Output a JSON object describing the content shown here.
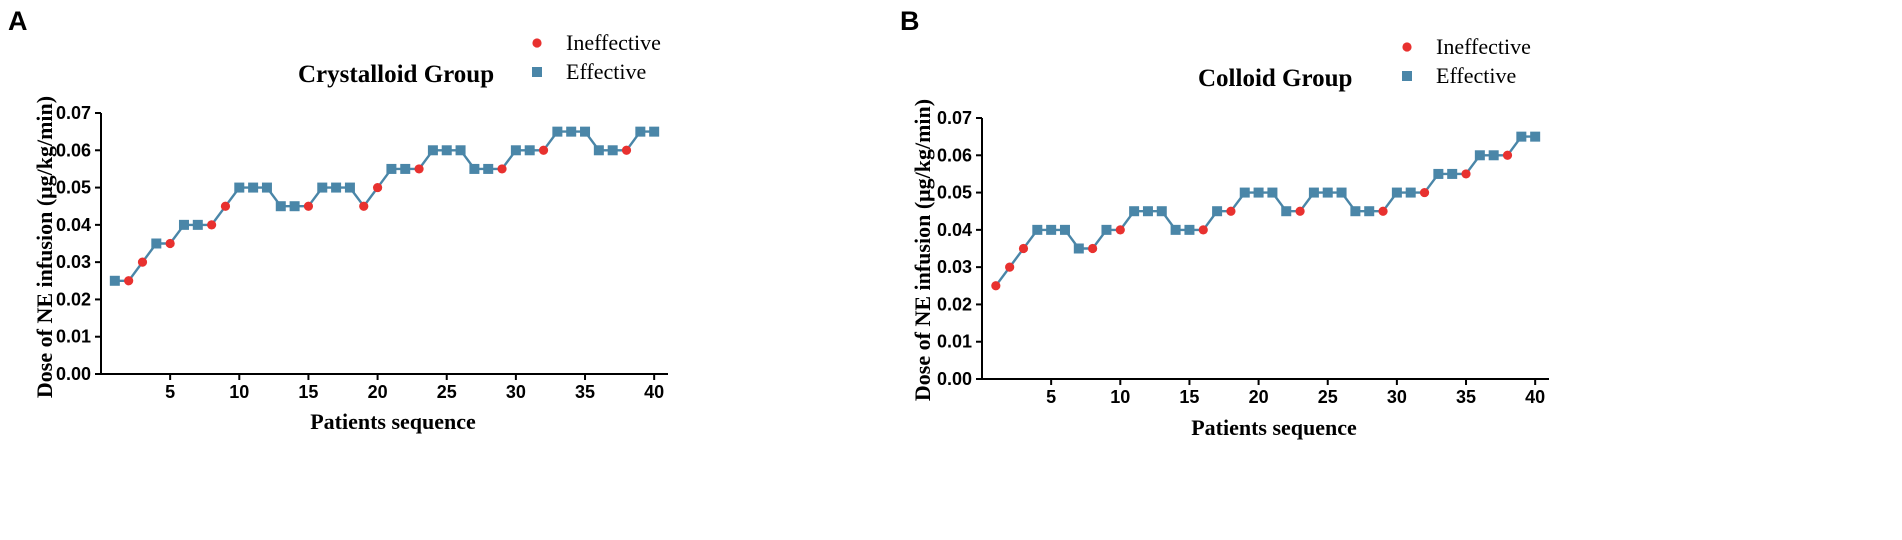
{
  "colors": {
    "ineffective": "#e8312f",
    "effective": "#4a86a8",
    "line": "#4a86a8"
  },
  "chart_data": [
    {
      "panel": "A",
      "type": "line",
      "title": "Crystalloid Group",
      "xlabel": "Patients sequence",
      "ylabel": "Dose of NE infusion (μg/kg/min)",
      "xlim": [
        0,
        41
      ],
      "ylim": [
        0,
        0.07
      ],
      "xticks": [
        5,
        10,
        15,
        20,
        25,
        30,
        35,
        40
      ],
      "yticks": [
        "0.00",
        "0.01",
        "0.02",
        "0.03",
        "0.04",
        "0.05",
        "0.06",
        "0.07"
      ],
      "legend": [
        {
          "label": "Ineffective",
          "marker": "circle"
        },
        {
          "label": "Effective",
          "marker": "square"
        }
      ],
      "x": [
        1,
        2,
        3,
        4,
        5,
        6,
        7,
        8,
        9,
        10,
        11,
        12,
        13,
        14,
        15,
        16,
        17,
        18,
        19,
        20,
        21,
        22,
        23,
        24,
        25,
        26,
        27,
        28,
        29,
        30,
        31,
        32,
        33,
        34,
        35,
        36,
        37,
        38,
        39,
        40
      ],
      "values": [
        0.025,
        0.025,
        0.03,
        0.035,
        0.035,
        0.04,
        0.04,
        0.04,
        0.045,
        0.05,
        0.05,
        0.05,
        0.045,
        0.045,
        0.045,
        0.05,
        0.05,
        0.05,
        0.045,
        0.05,
        0.055,
        0.055,
        0.055,
        0.06,
        0.06,
        0.06,
        0.055,
        0.055,
        0.055,
        0.06,
        0.06,
        0.06,
        0.065,
        0.065,
        0.065,
        0.06,
        0.06,
        0.06,
        0.065,
        0.065
      ],
      "outcomes": [
        "E",
        "I",
        "I",
        "E",
        "I",
        "E",
        "E",
        "I",
        "I",
        "E",
        "E",
        "E",
        "E",
        "E",
        "I",
        "E",
        "E",
        "E",
        "I",
        "I",
        "E",
        "E",
        "I",
        "E",
        "E",
        "E",
        "E",
        "E",
        "I",
        "E",
        "E",
        "I",
        "E",
        "E",
        "E",
        "E",
        "E",
        "I",
        "E",
        "E"
      ]
    },
    {
      "panel": "B",
      "type": "line",
      "title": "Colloid Group",
      "xlabel": "Patients sequence",
      "ylabel": "Dose of NE infusion (μg/kg/min)",
      "xlim": [
        0,
        41
      ],
      "ylim": [
        0,
        0.07
      ],
      "xticks": [
        5,
        10,
        15,
        20,
        25,
        30,
        35,
        40
      ],
      "yticks": [
        "0.00",
        "0.01",
        "0.02",
        "0.03",
        "0.04",
        "0.05",
        "0.06",
        "0.07"
      ],
      "legend": [
        {
          "label": "Ineffective",
          "marker": "circle"
        },
        {
          "label": "Effective",
          "marker": "square"
        }
      ],
      "x": [
        1,
        2,
        3,
        4,
        5,
        6,
        7,
        8,
        9,
        10,
        11,
        12,
        13,
        14,
        15,
        16,
        17,
        18,
        19,
        20,
        21,
        22,
        23,
        24,
        25,
        26,
        27,
        28,
        29,
        30,
        31,
        32,
        33,
        34,
        35,
        36,
        37,
        38,
        39,
        40
      ],
      "values": [
        0.025,
        0.03,
        0.035,
        0.04,
        0.04,
        0.04,
        0.035,
        0.035,
        0.04,
        0.04,
        0.045,
        0.045,
        0.045,
        0.04,
        0.04,
        0.04,
        0.045,
        0.045,
        0.05,
        0.05,
        0.05,
        0.045,
        0.045,
        0.05,
        0.05,
        0.05,
        0.045,
        0.045,
        0.045,
        0.05,
        0.05,
        0.05,
        0.055,
        0.055,
        0.055,
        0.06,
        0.06,
        0.06,
        0.065,
        0.065
      ],
      "outcomes": [
        "I",
        "I",
        "I",
        "E",
        "E",
        "E",
        "E",
        "I",
        "E",
        "I",
        "E",
        "E",
        "E",
        "E",
        "E",
        "I",
        "E",
        "I",
        "E",
        "E",
        "E",
        "E",
        "I",
        "E",
        "E",
        "E",
        "E",
        "E",
        "I",
        "E",
        "E",
        "I",
        "E",
        "E",
        "I",
        "E",
        "E",
        "I",
        "E",
        "E"
      ]
    }
  ]
}
